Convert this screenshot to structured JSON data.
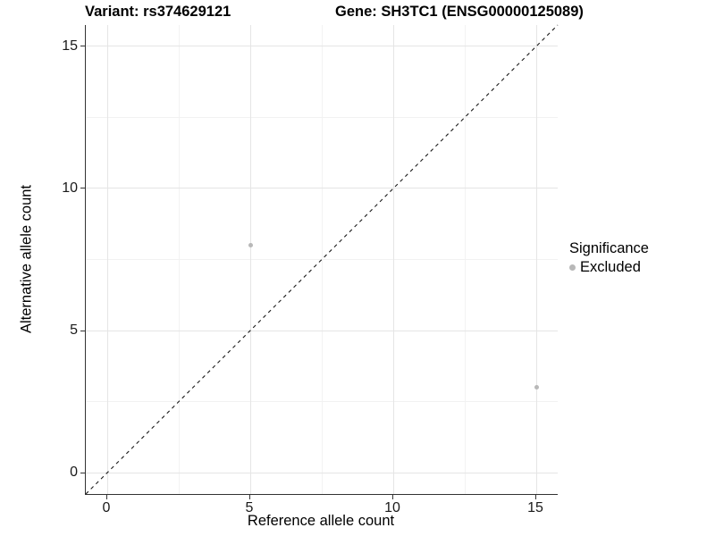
{
  "legend": {
    "title": "Significance",
    "items": [
      {
        "label": "Excluded",
        "color": "#b8b8b8"
      }
    ]
  },
  "chart_data": {
    "type": "scatter",
    "title_left": "Variant: rs374629121",
    "title_right": "Gene: SH3TC1 (ENSG00000125089)",
    "xlabel": "Reference allele count",
    "ylabel": "Alternative allele count",
    "xlim": [
      -0.75,
      15.75
    ],
    "ylim": [
      -0.75,
      15.75
    ],
    "x_major_ticks": [
      0,
      5,
      10,
      15
    ],
    "y_major_ticks": [
      0,
      5,
      10,
      15
    ],
    "x_minor_ticks": [
      2.5,
      7.5,
      12.5
    ],
    "y_minor_ticks": [
      2.5,
      7.5,
      12.5
    ],
    "grid": true,
    "legend_position": "right",
    "series": [
      {
        "name": "Excluded",
        "color": "#b8b8b8",
        "marker_size_px": 5,
        "points": [
          [
            5,
            8
          ],
          [
            15,
            3
          ]
        ]
      }
    ],
    "reference_line": {
      "style": "dashed",
      "color": "#1a1a1a",
      "from": [
        -0.75,
        -0.75
      ],
      "to": [
        15.75,
        15.75
      ]
    }
  },
  "style": {
    "grid_major": "#e5e5e5",
    "grid_minor": "#f2f2f2",
    "axis_line": "#333333",
    "tick_text": "#1a1a1a"
  }
}
